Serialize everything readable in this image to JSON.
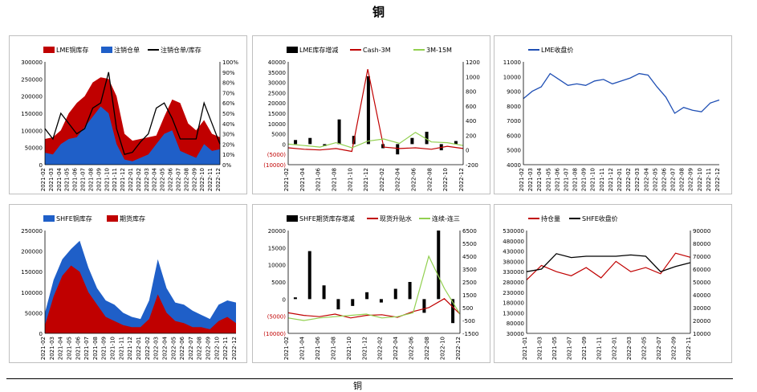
{
  "page": {
    "title": "铜",
    "footer_text": "铜"
  },
  "chart_data": [
    {
      "type": "stacked-area-line",
      "legend": [
        "LME铜库存",
        "注销仓单",
        "注销仓单/库存"
      ],
      "colors": {
        "stock": "#c00000",
        "cancelled": "#1f5fc8",
        "ratio": "#000000"
      },
      "left_axis": {
        "min": 0,
        "max": 300000,
        "ticks": [
          "300000",
          "250000",
          "200000",
          "150000",
          "100000",
          "50000",
          "0"
        ]
      },
      "right_axis": {
        "min": 0,
        "max": 100,
        "ticks": [
          "100%",
          "90%",
          "80%",
          "70%",
          "60%",
          "50%",
          "40%",
          "30%",
          "20%",
          "10%",
          "0%"
        ]
      },
      "x_labels": [
        "2021-02",
        "2021-03",
        "2021-04",
        "2021-05",
        "2021-06",
        "2021-07",
        "2021-08",
        "2021-09",
        "2021-10",
        "2021-11",
        "2021-12",
        "2022-01",
        "2022-02",
        "2022-03",
        "2022-04",
        "2022-05",
        "2022-06",
        "2022-07",
        "2022-08",
        "2022-09",
        "2022-10",
        "2022-11",
        "2022-12"
      ],
      "stock": [
        75000,
        80000,
        100000,
        150000,
        180000,
        200000,
        240000,
        255000,
        250000,
        200000,
        90000,
        70000,
        75000,
        80000,
        85000,
        140000,
        190000,
        180000,
        120000,
        100000,
        130000,
        90000,
        80000
      ],
      "cancelled": [
        35000,
        30000,
        60000,
        75000,
        80000,
        110000,
        140000,
        170000,
        150000,
        60000,
        15000,
        10000,
        20000,
        30000,
        60000,
        90000,
        100000,
        40000,
        30000,
        20000,
        60000,
        40000,
        45000
      ],
      "ratio_pct": [
        35,
        25,
        50,
        40,
        30,
        35,
        55,
        60,
        90,
        35,
        10,
        12,
        22,
        30,
        55,
        60,
        45,
        25,
        25,
        25,
        60,
        40,
        20
      ]
    },
    {
      "type": "bar-line",
      "legend": [
        "LME库存增减",
        "Cash-3M",
        "3M-15M"
      ],
      "colors": {
        "change": "#000000",
        "cash3m": "#c00000",
        "m3m15": "#92d050"
      },
      "left_axis": {
        "min": -10000,
        "max": 40000,
        "ticks": [
          "40000",
          "35000",
          "30000",
          "25000",
          "20000",
          "15000",
          "10000",
          "5000",
          "0",
          "(5000)",
          "(10000)"
        ]
      },
      "right_axis": {
        "min": -200,
        "max": 1200,
        "ticks": [
          "1200",
          "1000",
          "800",
          "600",
          "400",
          "200",
          "0",
          "-200"
        ]
      },
      "x_labels": [
        "2021-02",
        "2021-04",
        "2021-06",
        "2021-08",
        "2021-10",
        "2021-12",
        "2022-02",
        "2022-04",
        "2022-06",
        "2022-08",
        "2022-10",
        "2022-12"
      ],
      "change": [
        2000,
        3000,
        -1000,
        12000,
        4000,
        33000,
        -2000,
        -5000,
        3000,
        6000,
        -3000,
        1500
      ],
      "cash3m": [
        30,
        10,
        0,
        20,
        -20,
        1100,
        40,
        20,
        30,
        10,
        50,
        20
      ],
      "m3m15": [
        80,
        60,
        40,
        100,
        30,
        120,
        150,
        90,
        240,
        110,
        100,
        60
      ]
    },
    {
      "type": "line",
      "legend": [
        "LME收盘价"
      ],
      "colors": {
        "price": "#1f4fb4"
      },
      "y_axis": {
        "min": 4000,
        "max": 11000,
        "ticks": [
          "11000",
          "10000",
          "9000",
          "8000",
          "7000",
          "6000",
          "5000",
          "4000"
        ]
      },
      "x_labels": [
        "2021-02",
        "2021-03",
        "2021-04",
        "2021-05",
        "2021-06",
        "2021-07",
        "2021-08",
        "2021-09",
        "2021-10",
        "2021-11",
        "2021-12",
        "2022-01",
        "2022-02",
        "2022-03",
        "2022-04",
        "2022-05",
        "2022-06",
        "2022-07",
        "2022-08",
        "2022-09",
        "2022-10",
        "2022-11",
        "2022-12"
      ],
      "price": [
        8500,
        9000,
        9300,
        10200,
        9800,
        9400,
        9500,
        9400,
        9700,
        9800,
        9500,
        9700,
        9900,
        10200,
        10100,
        9300,
        8600,
        7500,
        7900,
        7700,
        7600,
        8200,
        8400
      ]
    },
    {
      "type": "stacked-area",
      "legend": [
        "SHFE铜库存",
        "期货库存"
      ],
      "colors": {
        "stock": "#1f5fc8",
        "futures": "#c00000"
      },
      "y_axis": {
        "min": 0,
        "max": 250000,
        "ticks": [
          "250000",
          "200000",
          "150000",
          "100000",
          "50000",
          "0"
        ]
      },
      "x_labels": [
        "2021-02",
        "2021-03",
        "2021-04",
        "2021-05",
        "2021-06",
        "2021-07",
        "2021-08",
        "2021-09",
        "2021-10",
        "2021-11",
        "2021-12",
        "2022-01",
        "2022-02",
        "2022-03",
        "2022-04",
        "2022-05",
        "2022-06",
        "2022-07",
        "2022-08",
        "2022-09",
        "2022-10",
        "2022-11",
        "2022-12"
      ],
      "stock": [
        50000,
        130000,
        180000,
        205000,
        225000,
        160000,
        110000,
        80000,
        70000,
        50000,
        40000,
        35000,
        80000,
        180000,
        110000,
        75000,
        70000,
        55000,
        45000,
        35000,
        70000,
        80000,
        75000
      ],
      "futures": [
        20000,
        90000,
        140000,
        165000,
        150000,
        100000,
        70000,
        40000,
        30000,
        20000,
        15000,
        15000,
        35000,
        95000,
        50000,
        30000,
        25000,
        15000,
        15000,
        10000,
        30000,
        40000,
        25000
      ]
    },
    {
      "type": "bar-line",
      "legend": [
        "SHFE期货库存增减",
        "现货升贴水",
        "连续-连三"
      ],
      "colors": {
        "change": "#000000",
        "spot": "#c00000",
        "spread": "#92d050"
      },
      "left_axis": {
        "min": -10000,
        "max": 20000,
        "ticks": [
          "20000",
          "15000",
          "10000",
          "5000",
          "0",
          "(5000)",
          "(10000)"
        ]
      },
      "right_axis": {
        "min": -1500,
        "max": 6500,
        "ticks": [
          "6500",
          "5500",
          "4500",
          "3500",
          "2500",
          "1500",
          "500",
          "-500",
          "-1500"
        ]
      },
      "x_labels": [
        "2021-02",
        "2021-04",
        "2021-06",
        "2021-08",
        "2021-10",
        "2021-12",
        "2022-02",
        "2022-04",
        "2022-06",
        "2022-08",
        "2022-10",
        "2022-12"
      ],
      "change": [
        500,
        14000,
        4000,
        -3000,
        -2000,
        2000,
        -1000,
        3000,
        5000,
        -4000,
        20000,
        -7000
      ],
      "spot": [
        100,
        -100,
        -200,
        0,
        -300,
        -100,
        -50,
        -250,
        200,
        500,
        1200,
        0
      ],
      "spread": [
        -300,
        -500,
        -300,
        -200,
        -100,
        0,
        -300,
        -200,
        100,
        4500,
        2000,
        0
      ]
    },
    {
      "type": "line",
      "legend": [
        "持仓量",
        "SHFE收盘价"
      ],
      "colors": {
        "oi": "#c00000",
        "price": "#000000"
      },
      "left_axis": {
        "min": 30000,
        "max": 530000,
        "ticks": [
          "530000",
          "480000",
          "430000",
          "380000",
          "330000",
          "280000",
          "230000",
          "180000",
          "130000",
          "80000",
          "30000"
        ]
      },
      "right_axis": {
        "min": 10000,
        "max": 90000,
        "ticks": [
          "90000",
          "80000",
          "70000",
          "60000",
          "50000",
          "40000",
          "30000",
          "20000",
          "10000"
        ]
      },
      "x_labels": [
        "2021-01",
        "2021-03",
        "2021-05",
        "2021-07",
        "2021-09",
        "2021-11",
        "2022-01",
        "2022-03",
        "2022-05",
        "2022-07",
        "2022-09",
        "2022-11"
      ],
      "oi": [
        290000,
        360000,
        330000,
        310000,
        350000,
        300000,
        380000,
        330000,
        350000,
        320000,
        420000,
        400000
      ],
      "price": [
        58000,
        60000,
        72000,
        69000,
        70000,
        70000,
        70000,
        71000,
        70000,
        58000,
        62000,
        65000
      ]
    }
  ]
}
